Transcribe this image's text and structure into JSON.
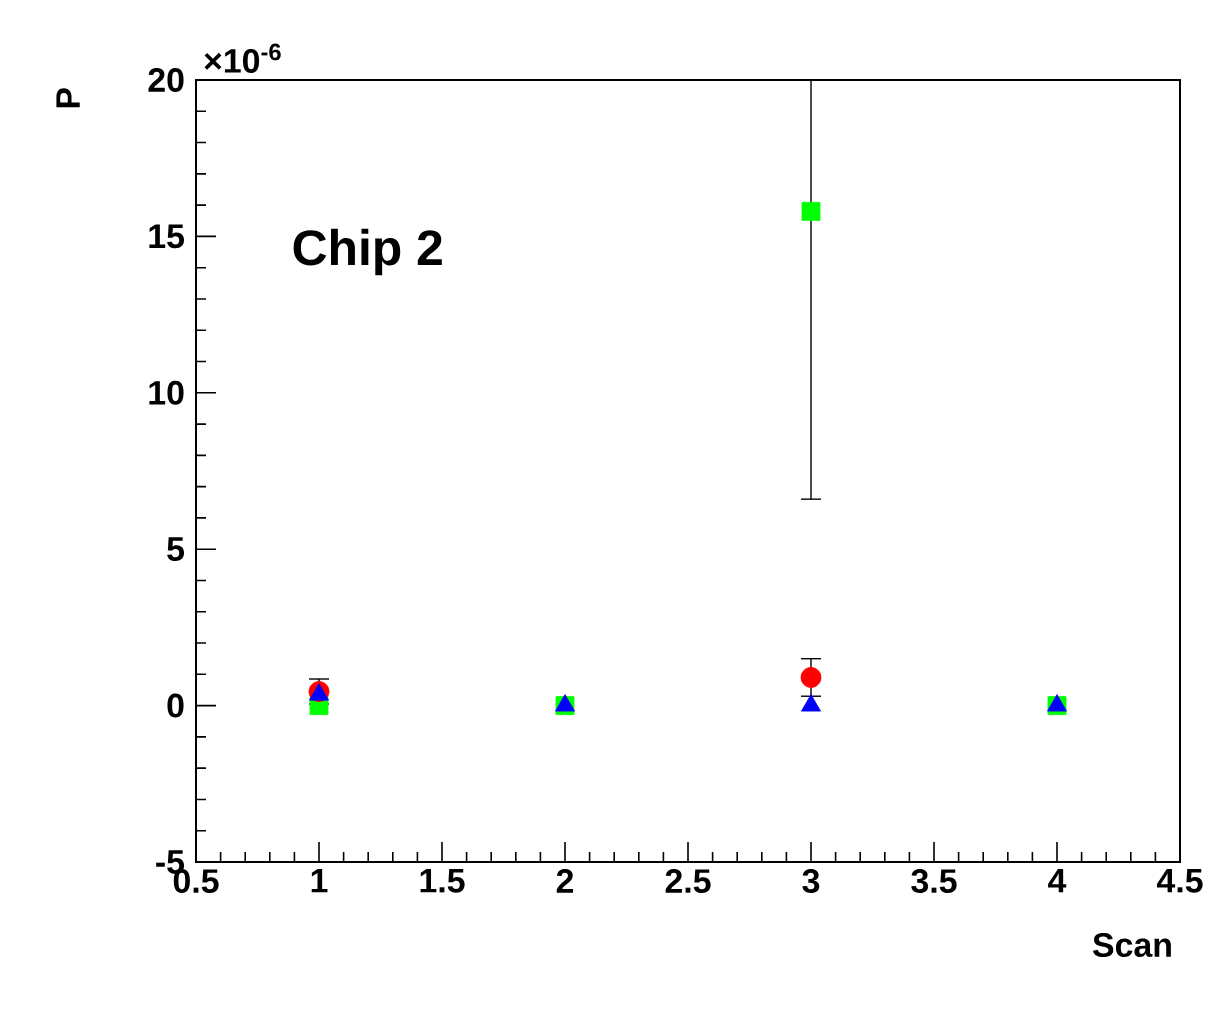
{
  "chart_data": {
    "type": "scatter",
    "xlabel": "Scan",
    "ylabel": "P",
    "annotations": [
      "Chip 2",
      "×10$^{-6}$"
    ],
    "x": [
      1,
      2,
      3,
      4
    ],
    "series": [
      {
        "color": "#00ff00",
        "marker": "square",
        "values": [
          0,
          0,
          15.8,
          0
        ],
        "errors": [
          null,
          null,
          [
            6.6,
            20
          ],
          null
        ]
      },
      {
        "color": "#ff0000",
        "marker": "circle",
        "values": [
          0.45,
          null,
          0.9,
          null
        ],
        "errors": [
          0.4,
          null,
          0.6,
          null
        ]
      },
      {
        "color": "#0000ff",
        "marker": "triangle",
        "values": [
          0.35,
          0,
          0,
          0
        ],
        "errors": [
          null,
          null,
          null,
          null
        ]
      }
    ],
    "xlim": [
      0.5,
      4.5
    ],
    "xticks": [
      0.5,
      1,
      1.5,
      2,
      2.5,
      3,
      3.5,
      4,
      4.5
    ],
    "ylim": [
      -5,
      20
    ],
    "yticks": [
      -5,
      0,
      5,
      10,
      15,
      20
    ],
    "grid": false
  }
}
